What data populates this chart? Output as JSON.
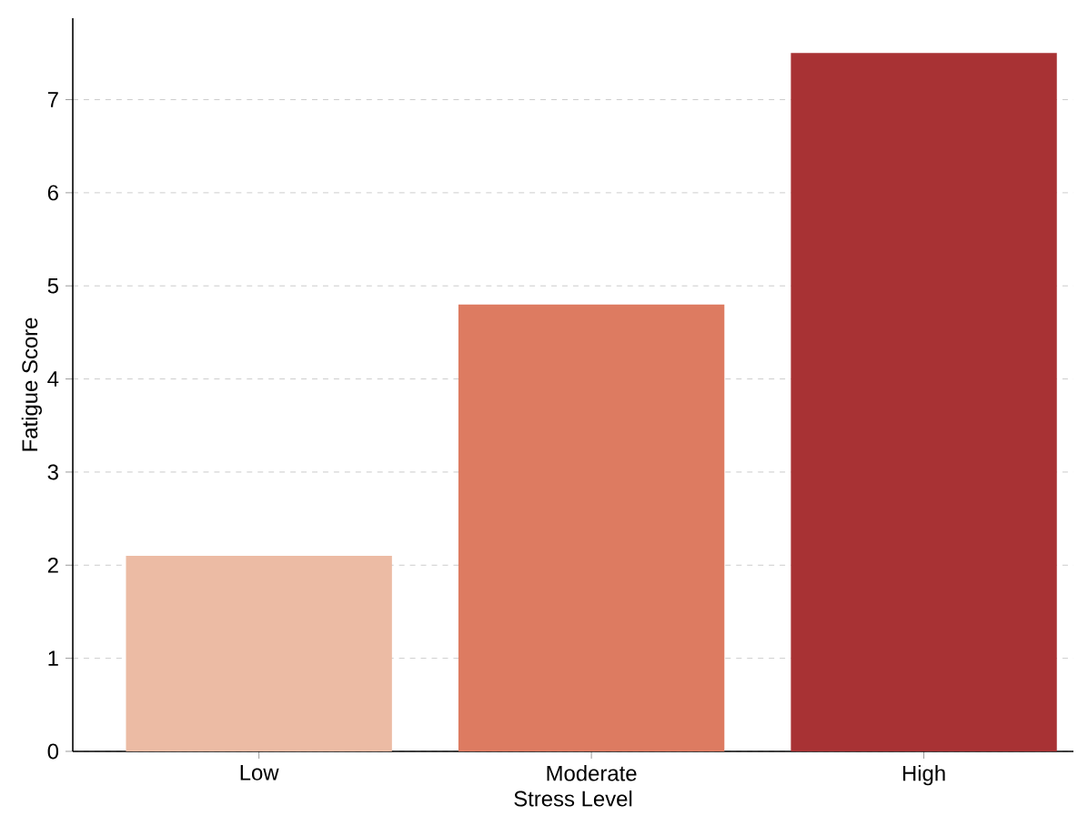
{
  "chart_data": {
    "type": "bar",
    "xlabel": "Stress Level",
    "ylabel": "Fatigue Score",
    "categories": [
      "Low",
      "Moderate",
      "High"
    ],
    "values": [
      2.1,
      4.8,
      7.5
    ],
    "colors": [
      "#ecbba4",
      "#dd7b61",
      "#a83234"
    ],
    "ylim": [
      0,
      7.875
    ],
    "yticks": [
      0,
      1,
      2,
      3,
      4,
      5,
      6,
      7
    ],
    "grid": "y"
  }
}
